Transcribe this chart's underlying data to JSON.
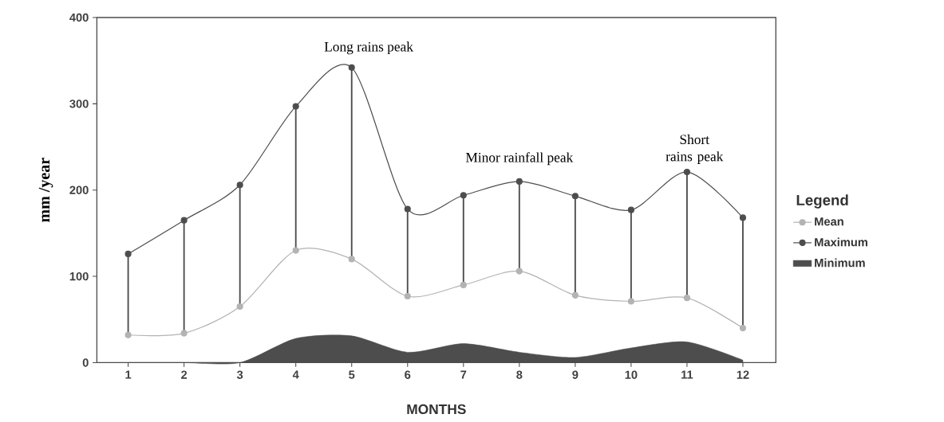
{
  "chart_data": {
    "type": "line",
    "xlabel": "MONTHS",
    "ylabel": "mm /year",
    "legend_title": "Legend",
    "categories": [
      "1",
      "2",
      "3",
      "4",
      "5",
      "6",
      "7",
      "8",
      "9",
      "10",
      "11",
      "12"
    ],
    "series": [
      {
        "name": "Mean",
        "color": "#b3b3b3",
        "values": [
          32,
          34,
          65,
          130,
          120,
          77,
          90,
          106,
          78,
          71,
          75,
          40
        ]
      },
      {
        "name": "Maximum",
        "color": "#4d4d4d",
        "values": [
          126,
          165,
          206,
          297,
          342,
          178,
          194,
          210,
          193,
          177,
          221,
          168
        ],
        "errors": [
          [
            32,
            126
          ],
          [
            34,
            165
          ],
          [
            65,
            206
          ],
          [
            130,
            297
          ],
          [
            120,
            342
          ],
          [
            77,
            178
          ],
          [
            90,
            194
          ],
          [
            106,
            210
          ],
          [
            78,
            193
          ],
          [
            71,
            177
          ],
          [
            75,
            221
          ],
          [
            40,
            168
          ]
        ]
      },
      {
        "name": "Minimum",
        "type": "area",
        "marker": "none",
        "color": "#4d4d4d",
        "values": [
          0,
          0,
          0,
          28,
          31,
          12,
          22,
          12,
          6,
          17,
          24,
          3
        ]
      }
    ],
    "ylim": [
      0,
      400
    ],
    "yticks": [
      0,
      100,
      200,
      300,
      400
    ],
    "annotations": [
      {
        "text": "Long rains peak",
        "x": "5",
        "y": 342
      },
      {
        "text": "Minor rainfall peak",
        "x": "8",
        "y": 210
      },
      {
        "text": "Short rains peak",
        "x": "11",
        "y": 221
      }
    ],
    "grid": false,
    "legend": "right",
    "marker": "circle",
    "line_style": "solid"
  }
}
